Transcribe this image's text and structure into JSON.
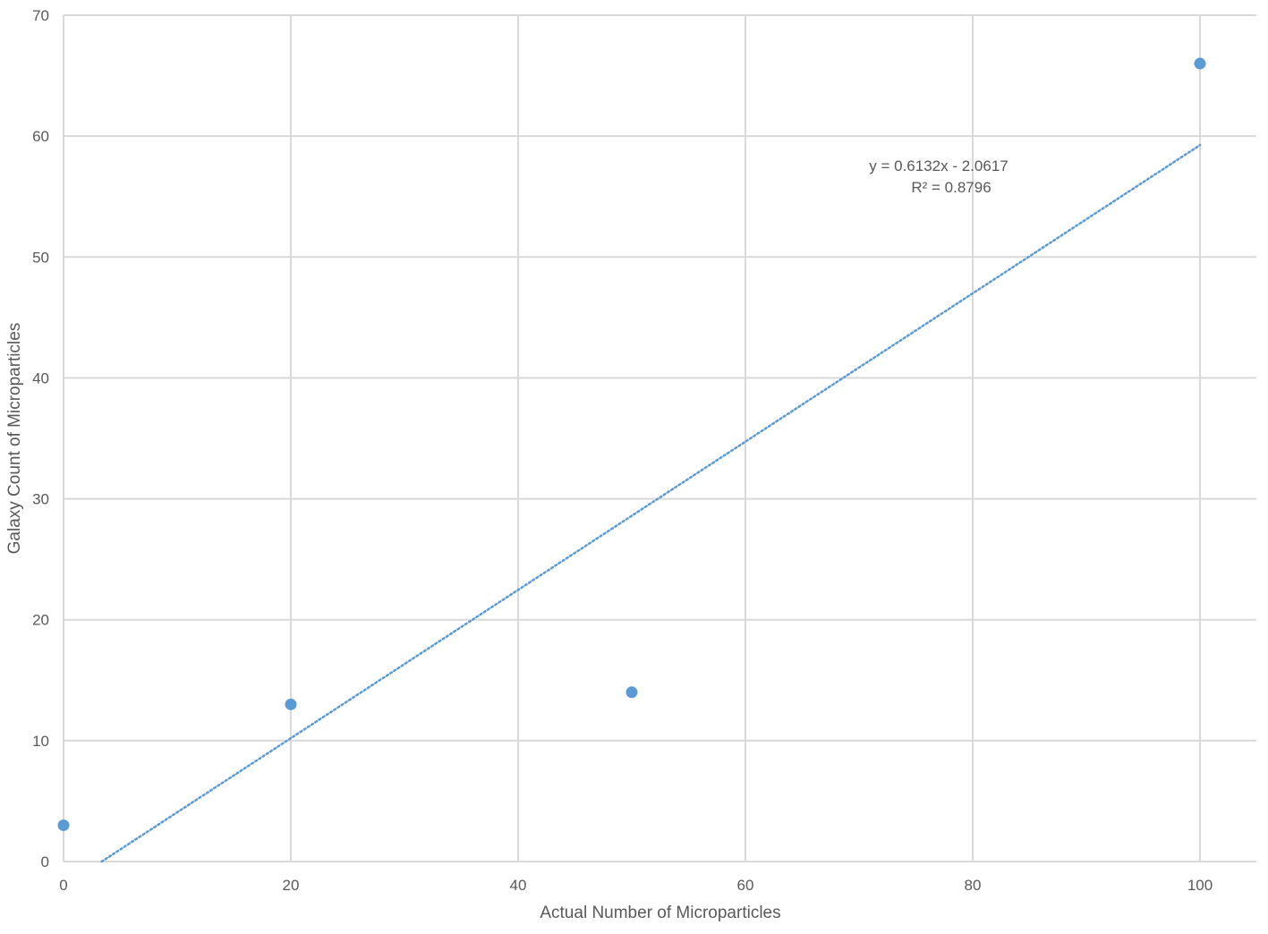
{
  "chart_data": {
    "type": "scatter",
    "title": "",
    "xlabel": "Actual Number of Microparticles",
    "ylabel": "Galaxy Count of Microparticles",
    "xlim": [
      0,
      105
    ],
    "ylim": [
      0,
      70
    ],
    "x_ticks": [
      0,
      20,
      40,
      60,
      80,
      100
    ],
    "y_ticks": [
      0,
      10,
      20,
      30,
      40,
      50,
      60,
      70
    ],
    "x_tick_labels": [
      "0",
      "20",
      "40",
      "60",
      "80",
      "100"
    ],
    "y_tick_labels": [
      "0",
      "10",
      "20",
      "30",
      "40",
      "50",
      "60",
      "70"
    ],
    "grid": true,
    "legend": "none",
    "series": [
      {
        "points": [
          {
            "x": 0,
            "y": 3
          },
          {
            "x": 20,
            "y": 13
          },
          {
            "x": 50,
            "y": 14
          },
          {
            "x": 100,
            "y": 66
          }
        ],
        "color": "#5b9bd5"
      }
    ],
    "trendline": {
      "type": "linear",
      "slope": 0.6132,
      "intercept": -2.0617,
      "x_range": [
        3.36,
        100
      ],
      "style": "dotted",
      "color": "#5b9bd5",
      "equation_label": "y = 0.6132x - 2.0617",
      "r_squared_label": "R² = 0.8796"
    },
    "colors": {
      "grid": "#d9d9d9",
      "text": "#595959",
      "marker": "#5b9bd5"
    }
  }
}
